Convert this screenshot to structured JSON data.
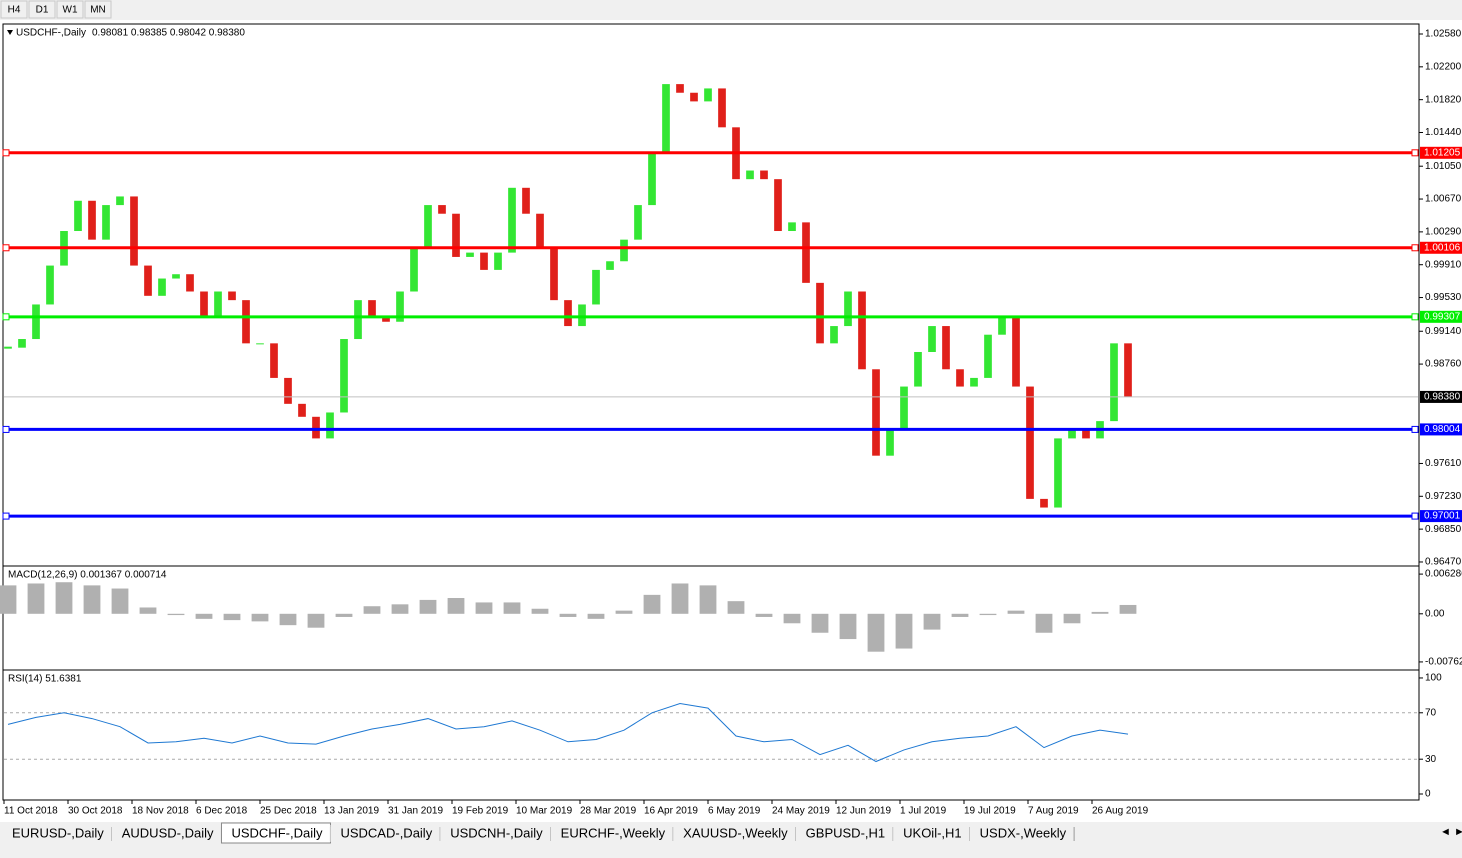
{
  "toolbar": {
    "buttons": [
      "H4",
      "D1",
      "W1",
      "MN"
    ]
  },
  "chart_data": [
    {
      "type": "candlestick",
      "title": "USDCHF-,Daily",
      "legend_text": "0.98081 0.98385 0.98042 0.98380",
      "up_color": "#33e633",
      "down_color": "#e0201a",
      "values": [
        0.9895,
        0.9905,
        0.9945,
        0.999,
        1.003,
        1.0065,
        1.002,
        1.006,
        1.007,
        0.999,
        0.9955,
        0.9975,
        0.998,
        0.996,
        0.993,
        0.996,
        0.995,
        0.99,
        0.99,
        0.986,
        0.983,
        0.9815,
        0.979,
        0.982,
        0.9905,
        0.995,
        0.993,
        0.9925,
        0.996,
        1.001,
        1.006,
        1.005,
        1.0,
        1.0005,
        0.9985,
        1.0005,
        1.008,
        1.005,
        1.001,
        0.995,
        0.992,
        0.9945,
        0.9985,
        0.9995,
        1.002,
        1.006,
        1.012,
        1.02,
        1.019,
        1.018,
        1.0195,
        1.015,
        1.009,
        1.01,
        1.009,
        1.003,
        1.004,
        0.997,
        0.99,
        0.992,
        0.996,
        0.987,
        0.977,
        0.98,
        0.985,
        0.989,
        0.992,
        0.987,
        0.985,
        0.986,
        0.991,
        0.993,
        0.985,
        0.972,
        0.971,
        0.979,
        0.98,
        0.979,
        0.981,
        0.99,
        0.9838
      ],
      "ylim": [
        0.96435,
        1.02684
      ],
      "yticks": [
        {
          "value": 1.0258,
          "label": "1.02580"
        },
        {
          "value": 1.022,
          "label": "1.02200"
        },
        {
          "value": 1.0182,
          "label": "1.01820"
        },
        {
          "value": 1.0144,
          "label": "1.01440"
        },
        {
          "value": 1.0105,
          "label": "1.01050"
        },
        {
          "value": 1.0067,
          "label": "1.00670"
        },
        {
          "value": 1.0029,
          "label": "1.00290"
        },
        {
          "value": 0.9991,
          "label": "0.99910"
        },
        {
          "value": 0.9953,
          "label": "0.99530"
        },
        {
          "value": 0.9914,
          "label": "0.99140"
        },
        {
          "value": 0.9876,
          "label": "0.98760"
        },
        {
          "value": 0.9761,
          "label": "0.97610"
        },
        {
          "value": 0.9723,
          "label": "0.97230"
        },
        {
          "value": 0.9685,
          "label": "0.96850"
        },
        {
          "value": 0.9647,
          "label": "0.96470"
        }
      ],
      "levels": [
        {
          "value": 1.01205,
          "color": "#ff0000"
        },
        {
          "value": 1.00106,
          "color": "#ff0000"
        },
        {
          "value": 0.99307,
          "color": "#00ee00"
        },
        {
          "value": 0.98004,
          "color": "#0000ff"
        },
        {
          "value": 0.97001,
          "color": "#0000ff"
        }
      ],
      "current": {
        "value": 0.9838,
        "label": "0.98380"
      }
    },
    {
      "type": "bar",
      "title": "MACD(12,26,9) 0.001367 0.000714",
      "color": "#b0b0b0",
      "values": [
        0.0045,
        0.0048,
        0.005,
        0.0045,
        0.004,
        0.001,
        -0.0002,
        -0.0008,
        -0.001,
        -0.0012,
        -0.0018,
        -0.0022,
        -0.0005,
        0.0012,
        0.0015,
        0.0022,
        0.0025,
        0.0018,
        0.0018,
        0.0008,
        -0.0005,
        -0.0008,
        0.0005,
        0.003,
        0.0048,
        0.0045,
        0.002,
        -0.0005,
        -0.0015,
        -0.003,
        -0.004,
        -0.006,
        -0.0055,
        -0.0025,
        -0.0005,
        -0.0002,
        0.0005,
        -0.003,
        -0.0015,
        0.0003,
        0.0014
      ],
      "ylim": [
        -0.00874,
        0.00741
      ],
      "yticks": [
        0.006286,
        {
          "value": 0,
          "label": "0.00"
        },
        -0.00762
      ]
    },
    {
      "type": "line",
      "title": "RSI(14) 51.6381",
      "color": "#1e78d2",
      "values": [
        60,
        66,
        70,
        65,
        58,
        44,
        45,
        48,
        44,
        50,
        44,
        43,
        50,
        56,
        60,
        65,
        56,
        58,
        63,
        55,
        45,
        47,
        55,
        70,
        78,
        74,
        50,
        45,
        47,
        34,
        42,
        28,
        38,
        45,
        48,
        50,
        58,
        40,
        50,
        55,
        51.6381
      ],
      "ylim": [
        -4.3,
        106
      ],
      "yticks": [
        100,
        70,
        30,
        0
      ],
      "dashed_levels": [
        70,
        30
      ]
    }
  ],
  "time_axis": {
    "labels": [
      "11 Oct 2018",
      "30 Oct 2018",
      "18 Nov 2018",
      "6 Dec 2018",
      "25 Dec 2018",
      "13 Jan 2019",
      "31 Jan 2019",
      "19 Feb 2019",
      "10 Mar 2019",
      "28 Mar 2019",
      "16 Apr 2019",
      "6 May 2019",
      "24 May 2019",
      "12 Jun 2019",
      "1 Jul 2019",
      "19 Jul 2019",
      "7 Aug 2019",
      "26 Aug 2019"
    ]
  },
  "tabs": {
    "items": [
      "EURUSD-,Daily",
      "AUDUSD-,Daily",
      "USDCHF-,Daily",
      "USDCAD-,Daily",
      "USDCNH-,Daily",
      "EURCHF-,Weekly",
      "XAUUSD-,Weekly",
      "GBPUSD-,H1",
      "UKOil-,H1",
      "USDX-,Weekly"
    ],
    "active": 2
  }
}
